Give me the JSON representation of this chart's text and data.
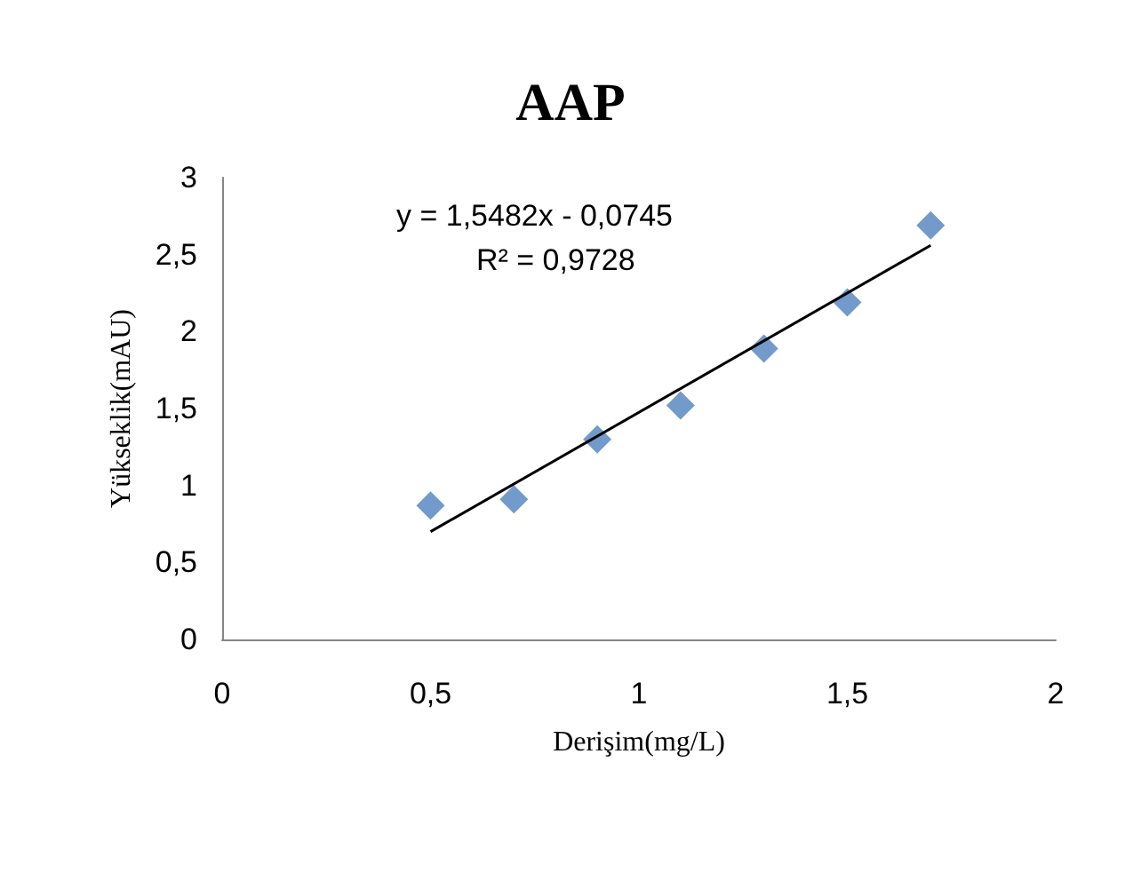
{
  "chart_data": {
    "type": "scatter",
    "title": "AAP",
    "xlabel": "Derişim(mg/L)",
    "ylabel": "Yükseklik(mAU)",
    "x": [
      0.5,
      0.7,
      0.9,
      1.1,
      1.3,
      1.5,
      1.7
    ],
    "series": [
      {
        "color": "#4f81bd",
        "values": [
          0.87,
          0.91,
          1.3,
          1.52,
          1.89,
          2.19,
          2.69
        ]
      },
      {
        "type": "line",
        "marker": "none",
        "color": "#000000",
        "x": [
          0.5,
          1.7
        ],
        "values": [
          0.7,
          2.56
        ]
      }
    ],
    "xlim": [
      0,
      2
    ],
    "xticks": [
      0,
      {
        "value": 0.5,
        "label": "0,5"
      },
      1,
      {
        "value": 1.5,
        "label": "1,5"
      },
      2
    ],
    "ylim": [
      0,
      3
    ],
    "yticks": [
      0,
      {
        "value": 0.5,
        "label": "0,5"
      },
      1,
      {
        "value": 1.5,
        "label": "1,5"
      },
      2,
      {
        "value": 2.5,
        "label": "2,5"
      },
      3
    ],
    "annotations": [
      "y = 1,5482x - 0,0745",
      "R² = 0,9728"
    ],
    "grid": false,
    "marker": "diamond"
  }
}
